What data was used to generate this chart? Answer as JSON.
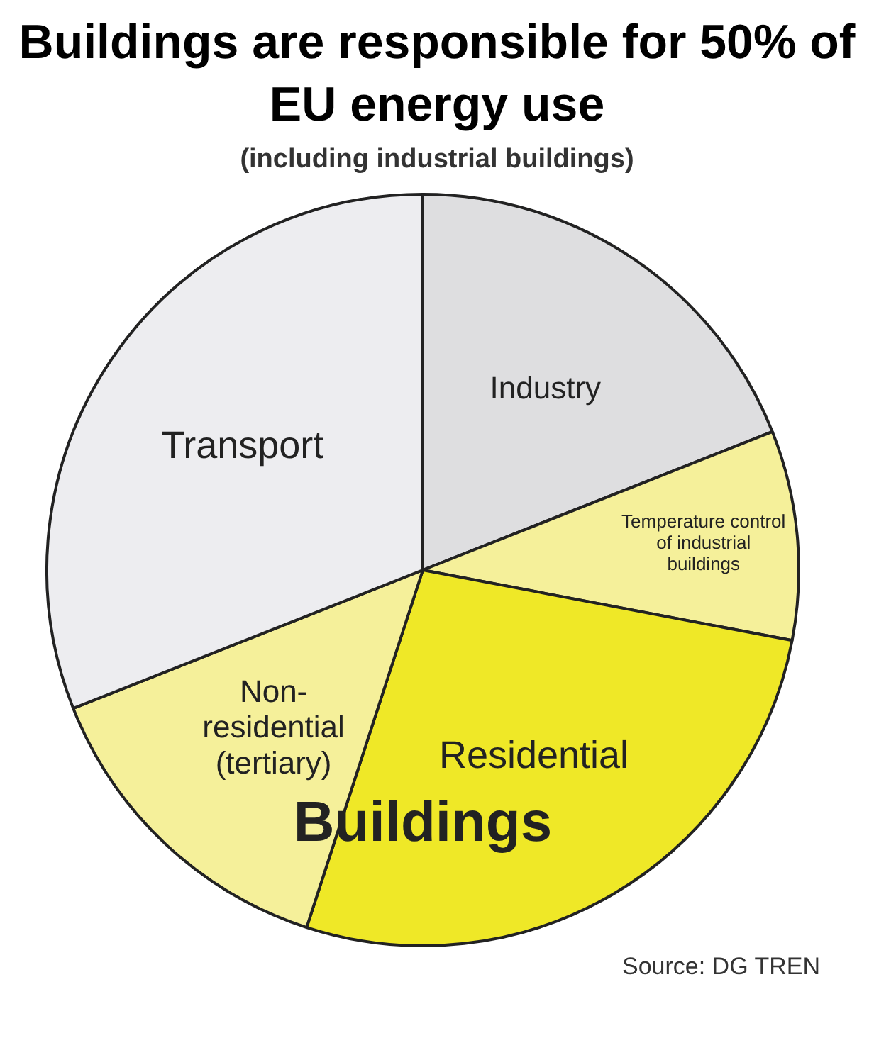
{
  "chart_data": {
    "type": "pie",
    "title": "Buildings are responsible for 50% of EU energy use",
    "subtitle": "(including industrial buildings)",
    "categories": [
      "Industry",
      "Temperature control of industrial buildings",
      "Residential",
      "Non-residential (tertiary)",
      "Transport"
    ],
    "values": [
      19,
      9,
      27,
      14,
      31
    ],
    "colors": [
      "#dedee0",
      "#f5f09a",
      "#efe827",
      "#f5f09a",
      "#ededf0"
    ],
    "annotations": [
      "Buildings",
      "Source: DG TREN"
    ],
    "legend": false
  }
}
